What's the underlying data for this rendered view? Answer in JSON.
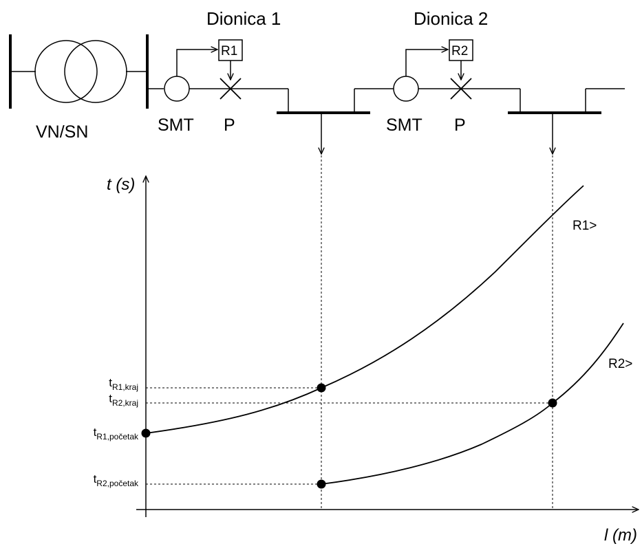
{
  "header": {
    "section1": "Dionica 1",
    "section2": "Dionica 2"
  },
  "transformer": {
    "label": "VN/SN"
  },
  "feeder": {
    "smt1": "SMT",
    "p1": "P",
    "relay1": "R1",
    "smt2": "SMT",
    "p2": "P",
    "relay2": "R2"
  },
  "chart_data": {
    "type": "line",
    "title": "",
    "ylabel": "t (s)",
    "xlabel": "l (m)",
    "series": [
      {
        "name": "R1>",
        "points": [
          [
            0.0,
            0.3
          ],
          [
            0.37,
            0.48
          ],
          [
            0.58,
            0.78
          ],
          [
            0.79,
            1.18
          ],
          [
            0.93,
            1.6
          ]
        ]
      },
      {
        "name": "R2>",
        "points": [
          [
            0.37,
            0.05
          ],
          [
            0.56,
            0.13
          ],
          [
            0.79,
            0.45
          ],
          [
            0.93,
            0.84
          ]
        ]
      }
    ],
    "markers": [
      {
        "label": "R1,kraj",
        "x": 0.37,
        "y": 0.48
      },
      {
        "label": "R2,kraj",
        "x": 0.79,
        "y": 0.45
      },
      {
        "label": "R1,početak",
        "x": 0.0,
        "y": 0.3
      },
      {
        "label": "R2,početak",
        "x": 0.37,
        "y": 0.05
      }
    ],
    "ticks": {
      "r1_kraj": {
        "t": "t",
        "sub": "R1,kraj"
      },
      "r2_kraj": {
        "t": "t",
        "sub": "R2,kraj"
      },
      "r1_poc": {
        "t": "t",
        "sub": "R1,početak"
      },
      "r2_poc": {
        "t": "t",
        "sub": "R2,početak"
      }
    },
    "series_labels": {
      "r1": "R1>",
      "r2": "R2>"
    }
  }
}
